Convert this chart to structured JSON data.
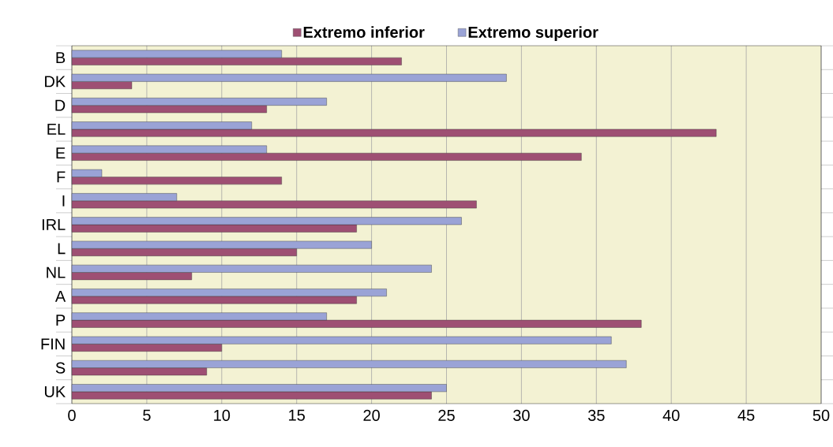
{
  "chart_data": {
    "type": "bar",
    "orientation": "horizontal",
    "categories": [
      "B",
      "DK",
      "D",
      "EL",
      "E",
      "F",
      "I",
      "IRL",
      "L",
      "NL",
      "A",
      "P",
      "FIN",
      "S",
      "UK"
    ],
    "series": [
      {
        "name": "Extremo inferior",
        "color": "#9e4f73",
        "values": [
          22,
          4,
          13,
          43,
          34,
          14,
          27,
          19,
          15,
          8,
          19,
          38,
          10,
          9,
          24
        ]
      },
      {
        "name": "Extremo superior",
        "color": "#9aa3d6",
        "values": [
          14,
          29,
          17,
          12,
          13,
          2,
          7,
          26,
          20,
          24,
          21,
          17,
          36,
          37,
          25
        ]
      }
    ],
    "xlim": [
      0,
      50
    ],
    "xticks": [
      0,
      5,
      10,
      15,
      20,
      25,
      30,
      35,
      40,
      45,
      50
    ],
    "grid": "x",
    "legend": "top"
  }
}
